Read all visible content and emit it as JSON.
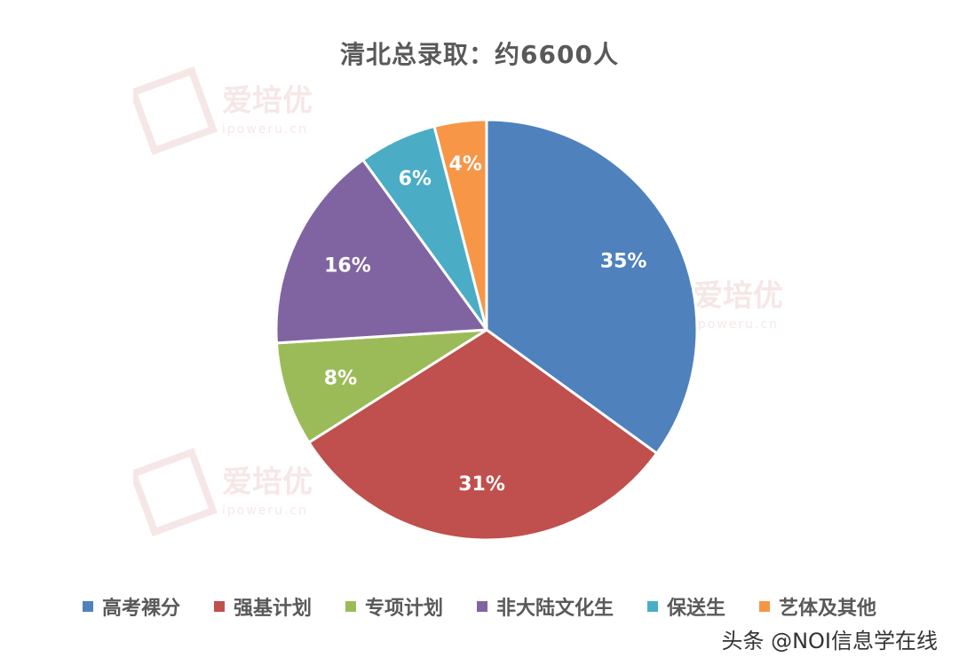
{
  "watermark": {
    "text": "爱培优",
    "url": "ipoweru.cn"
  },
  "credit": "头条 @NOI信息学在线",
  "chart_data": {
    "type": "pie",
    "title": "清北总录取：约6600人",
    "slices": [
      {
        "name": "高考裸分",
        "value": 35,
        "label": "35%",
        "color": "#4f81bd"
      },
      {
        "name": "强基计划",
        "value": 31,
        "label": "31%",
        "color": "#c0504d"
      },
      {
        "name": "专项计划",
        "value": 8,
        "label": "8%",
        "color": "#9bbb59"
      },
      {
        "name": "非大陆文化生",
        "value": 16,
        "label": "16%",
        "color": "#8064a2"
      },
      {
        "name": "保送生",
        "value": 6,
        "label": "6%",
        "color": "#4bacc6"
      },
      {
        "name": "艺体及其他",
        "value": 4,
        "label": "4%",
        "color": "#f79646"
      }
    ],
    "legend_position": "bottom"
  }
}
